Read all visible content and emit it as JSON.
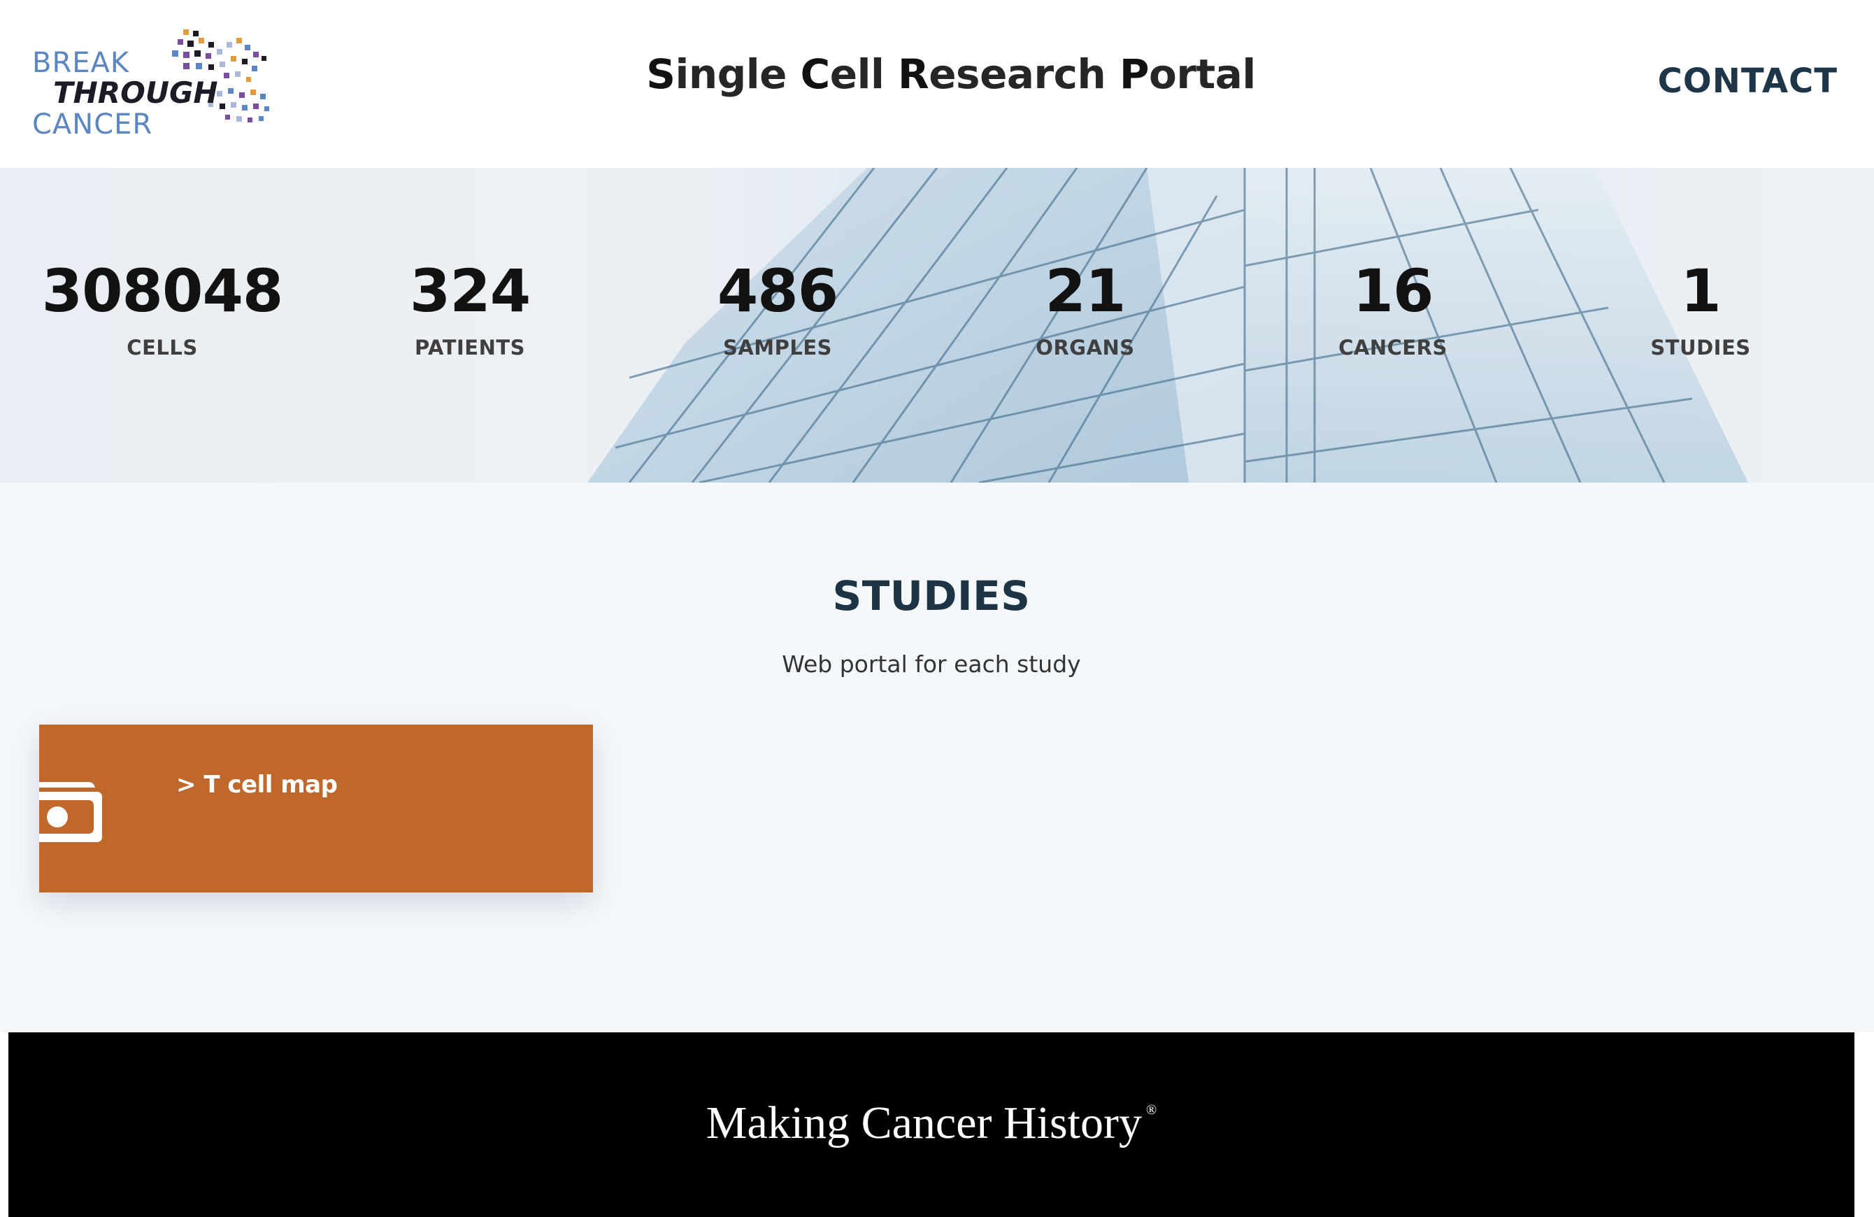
{
  "header": {
    "logo": {
      "line1": "BREAK",
      "line2": "THROUGH",
      "line3": "CANCER"
    },
    "title_parts": [
      {
        "cap": "S",
        "rest": "ingle "
      },
      {
        "cap": "C",
        "rest": "ell "
      },
      {
        "cap": "R",
        "rest": "esearch "
      },
      {
        "cap": "P",
        "rest": "ortal"
      }
    ],
    "contact_label": "CONTACT"
  },
  "stats": [
    {
      "value": "308048",
      "label": "CELLS"
    },
    {
      "value": "324",
      "label": "PATIENTS"
    },
    {
      "value": "486",
      "label": "SAMPLES"
    },
    {
      "value": "21",
      "label": "ORGANS"
    },
    {
      "value": "16",
      "label": "CANCERS"
    },
    {
      "value": "1",
      "label": "STUDIES"
    }
  ],
  "studies": {
    "title": "STUDIES",
    "subtitle": "Web portal for each study",
    "cards": [
      {
        "label": "> T cell map",
        "icon": "money-bill-icon"
      }
    ]
  },
  "footer": {
    "tagline": "Making Cancer History",
    "mark": "®"
  },
  "colors": {
    "logo_blue": "#5b86c2",
    "card_orange": "#c0672c",
    "heading_navy": "#1c3444",
    "footer_bg": "#000000"
  }
}
